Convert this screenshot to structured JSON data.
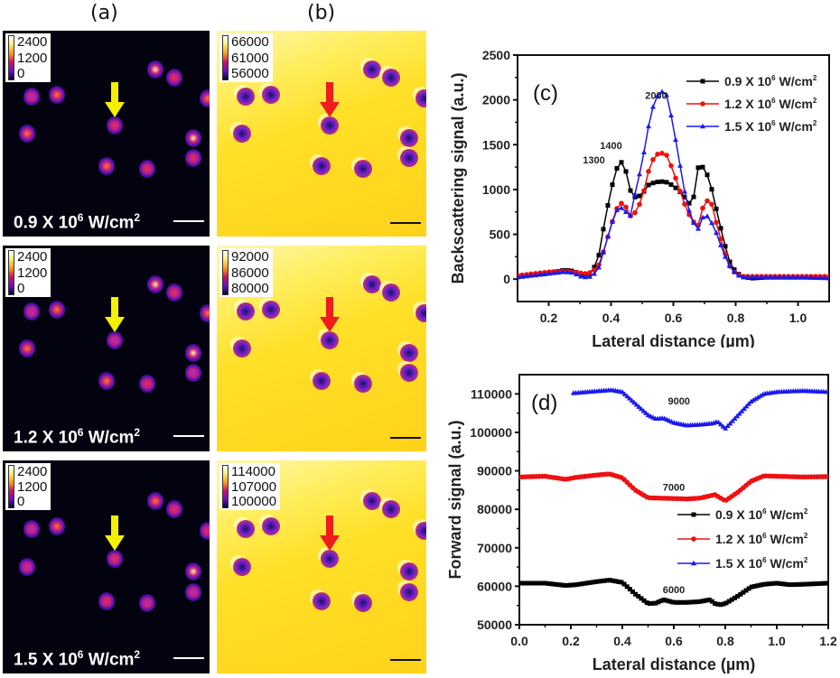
{
  "panel_labels": {
    "a": "(a)",
    "b": "(b)",
    "c": "(c)",
    "d": "(d)"
  },
  "image_rows": [
    {
      "intensity_text": "0.9 X 10",
      "intensity_exp": "6",
      "intensity_unit": " W/cm",
      "intensity_unit_exp": "2",
      "backscatter_colorbar": [
        "2400",
        "1200",
        "0"
      ],
      "forward_colorbar": [
        "66000",
        "61000",
        "56000"
      ]
    },
    {
      "intensity_text": "1.2 X 10",
      "intensity_exp": "6",
      "intensity_unit": " W/cm",
      "intensity_unit_exp": "2",
      "backscatter_colorbar": [
        "2400",
        "1200",
        "0"
      ],
      "forward_colorbar": [
        "92000",
        "86000",
        "80000"
      ]
    },
    {
      "intensity_text": "1.5 X 10",
      "intensity_exp": "6",
      "intensity_unit": " W/cm",
      "intensity_unit_exp": "2",
      "backscatter_colorbar": [
        "2400",
        "1200",
        "0"
      ],
      "forward_colorbar": [
        "114000",
        "107000",
        "100000"
      ]
    }
  ],
  "arrow_colors": {
    "backscatter": "#f5f000",
    "forward": "#ee1c1c"
  },
  "series_colors": {
    "s09": "#000000",
    "s12": "#ee1111",
    "s15": "#1a1aee"
  },
  "chart_data": [
    {
      "type": "line",
      "panel": "(c)",
      "title": "",
      "xlabel": "Lateral distance (µm)",
      "ylabel": "Backscattering signal (a.u.)",
      "xlim": [
        0.1,
        1.1
      ],
      "ylim": [
        -250,
        2500
      ],
      "xticks": [
        "0.2",
        "0.4",
        "0.6",
        "0.8",
        "1.0"
      ],
      "yticks": [
        "0",
        "500",
        "1000",
        "1500",
        "2000",
        "2500"
      ],
      "legend_position": "top-right",
      "annotations": [
        "2000",
        "1400",
        "1300"
      ],
      "series": [
        {
          "name": "0.9 X 10^6 W/cm^2",
          "marker": "square",
          "x": [
            0.1,
            0.15,
            0.2,
            0.25,
            0.28,
            0.3,
            0.32,
            0.34,
            0.36,
            0.38,
            0.4,
            0.42,
            0.44,
            0.46,
            0.48,
            0.5,
            0.52,
            0.54,
            0.56,
            0.58,
            0.6,
            0.62,
            0.64,
            0.66,
            0.68,
            0.7,
            0.72,
            0.74,
            0.76,
            0.78,
            0.8,
            0.82,
            0.85,
            0.9,
            1.0,
            1.1
          ],
          "y": [
            30,
            50,
            70,
            100,
            90,
            60,
            40,
            80,
            250,
            650,
            1000,
            1250,
            1330,
            1000,
            900,
            950,
            1050,
            1080,
            1090,
            1080,
            1040,
            980,
            900,
            800,
            1250,
            1250,
            1050,
            750,
            450,
            200,
            80,
            30,
            10,
            20,
            20,
            20
          ]
        },
        {
          "name": "1.2 X 10^6 W/cm^2",
          "marker": "circle",
          "x": [
            0.1,
            0.15,
            0.2,
            0.25,
            0.28,
            0.3,
            0.32,
            0.34,
            0.36,
            0.38,
            0.4,
            0.42,
            0.44,
            0.46,
            0.48,
            0.5,
            0.52,
            0.54,
            0.56,
            0.58,
            0.6,
            0.62,
            0.64,
            0.66,
            0.68,
            0.7,
            0.72,
            0.74,
            0.76,
            0.78,
            0.8,
            0.82,
            0.85,
            0.9,
            1.0,
            1.1
          ],
          "y": [
            40,
            60,
            80,
            90,
            80,
            70,
            60,
            80,
            150,
            350,
            600,
            800,
            870,
            700,
            750,
            900,
            1200,
            1380,
            1410,
            1380,
            1200,
            1000,
            800,
            650,
            600,
            870,
            880,
            600,
            350,
            150,
            60,
            30,
            30,
            30,
            30,
            30
          ]
        },
        {
          "name": "1.5 X 10^6 W/cm^2",
          "marker": "triangle",
          "x": [
            0.1,
            0.15,
            0.2,
            0.25,
            0.28,
            0.3,
            0.32,
            0.34,
            0.36,
            0.38,
            0.4,
            0.42,
            0.44,
            0.46,
            0.48,
            0.5,
            0.52,
            0.54,
            0.56,
            0.58,
            0.6,
            0.62,
            0.64,
            0.66,
            0.68,
            0.7,
            0.72,
            0.74,
            0.76,
            0.78,
            0.8,
            0.82,
            0.85,
            0.9,
            1.0,
            1.1
          ],
          "y": [
            20,
            40,
            60,
            80,
            70,
            30,
            20,
            30,
            120,
            350,
            600,
            780,
            800,
            670,
            1000,
            1300,
            1700,
            2000,
            2100,
            2050,
            1700,
            1300,
            900,
            650,
            560,
            740,
            650,
            500,
            300,
            150,
            60,
            20,
            20,
            20,
            20,
            10
          ]
        }
      ]
    },
    {
      "type": "line",
      "panel": "(d)",
      "title": "",
      "xlabel": "Lateral distance (µm)",
      "ylabel": "Forward signal (a.u.)",
      "xlim": [
        0.0,
        1.2
      ],
      "ylim": [
        50000,
        115000
      ],
      "xticks": [
        "0.0",
        "0.2",
        "0.4",
        "0.6",
        "0.8",
        "1.0",
        "1.2"
      ],
      "yticks": [
        "50000",
        "60000",
        "70000",
        "80000",
        "90000",
        "100000",
        "110000"
      ],
      "legend_position": "center-right",
      "annotations": [
        "9000",
        "7000",
        "6000"
      ],
      "series": [
        {
          "name": "0.9 X 10^6 W/cm^2",
          "marker": "square",
          "x": [
            0.0,
            0.1,
            0.18,
            0.22,
            0.3,
            0.35,
            0.4,
            0.45,
            0.5,
            0.53,
            0.56,
            0.6,
            0.65,
            0.7,
            0.74,
            0.76,
            0.78,
            0.8,
            0.85,
            0.9,
            0.95,
            1.0,
            1.05,
            1.1,
            1.2
          ],
          "y": [
            60800,
            60800,
            60200,
            60400,
            61200,
            61600,
            61000,
            58000,
            55500,
            55600,
            56500,
            55800,
            55800,
            56000,
            56500,
            55500,
            55200,
            55500,
            57500,
            59800,
            60500,
            60800,
            60400,
            60500,
            60800
          ]
        },
        {
          "name": "1.2 X 10^6 W/cm^2",
          "marker": "circle",
          "x": [
            0.0,
            0.1,
            0.18,
            0.22,
            0.3,
            0.35,
            0.4,
            0.45,
            0.5,
            0.55,
            0.6,
            0.65,
            0.7,
            0.76,
            0.8,
            0.85,
            0.9,
            0.95,
            1.0,
            1.1,
            1.2
          ],
          "y": [
            88400,
            88600,
            87800,
            88300,
            88900,
            89200,
            88200,
            85000,
            83000,
            82900,
            82800,
            82700,
            82900,
            83800,
            82200,
            84500,
            87300,
            88700,
            88600,
            88400,
            88500
          ]
        },
        {
          "name": "1.5 X 10^6 W/cm^2",
          "marker": "triangle",
          "x": [
            0.21,
            0.3,
            0.36,
            0.4,
            0.45,
            0.5,
            0.53,
            0.56,
            0.6,
            0.65,
            0.7,
            0.75,
            0.77,
            0.8,
            0.85,
            0.9,
            0.95,
            1.0,
            1.1,
            1.2
          ],
          "y": [
            110200,
            110700,
            111000,
            110500,
            107500,
            104500,
            103500,
            103700,
            102500,
            101800,
            102000,
            102300,
            102800,
            101000,
            104500,
            108000,
            110000,
            110500,
            110800,
            110500
          ]
        }
      ]
    }
  ]
}
